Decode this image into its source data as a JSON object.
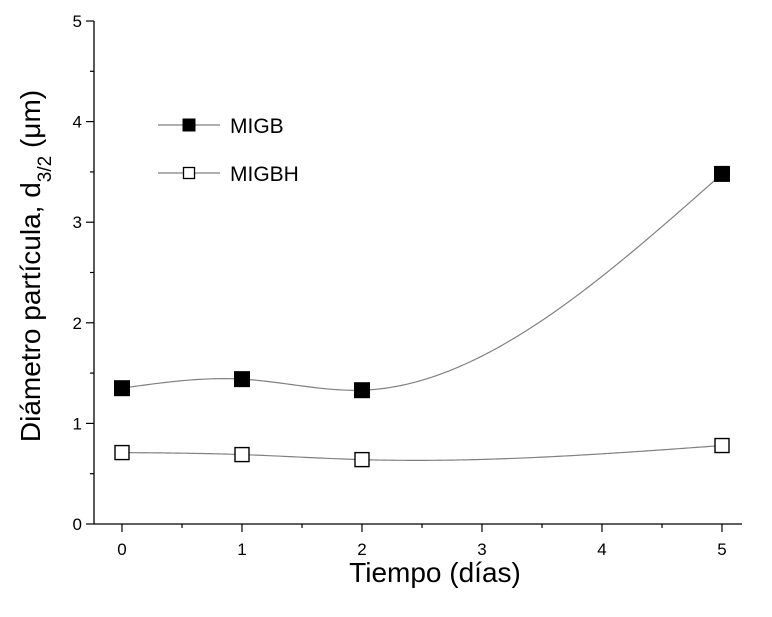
{
  "chart_data": {
    "type": "line",
    "x": [
      0,
      1,
      2,
      5
    ],
    "series": [
      {
        "name": "MIGB",
        "values": [
          1.35,
          1.44,
          1.33,
          3.48
        ],
        "marker": "filled-square",
        "color": "#000000"
      },
      {
        "name": "MIGBH",
        "values": [
          0.71,
          0.69,
          0.64,
          0.78
        ],
        "marker": "open-square",
        "color": "#000000"
      }
    ],
    "xlabel": "Tiempo (días)",
    "ylabel": {
      "main": "Diámetro partícula, d",
      "sub": "3/2",
      "unit": " (μm)"
    },
    "xlim": [
      0,
      5
    ],
    "ylim": [
      0,
      5
    ],
    "x_ticks": [
      "0",
      "1",
      "2",
      "3",
      "4",
      "5"
    ],
    "y_ticks": [
      "0",
      "1",
      "2",
      "3",
      "4",
      "5"
    ],
    "grid": false,
    "legend_position": "top-left",
    "line_style": "smooth spline",
    "line_color": "#808080"
  }
}
